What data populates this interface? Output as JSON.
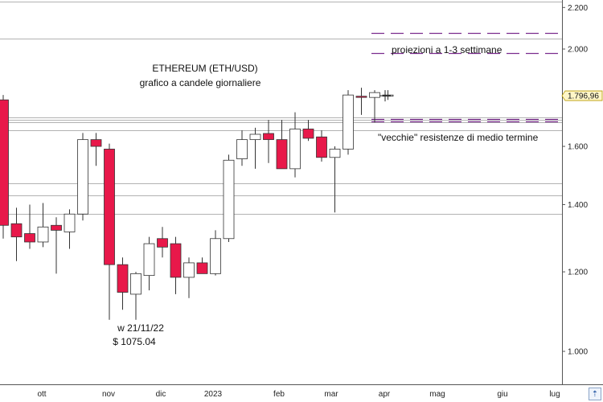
{
  "chart_data": {
    "type": "candlestick",
    "title": "ETHEREUM (ETH/USD)",
    "subtitle": "grafico a candele giornaliere",
    "ylim": [
      900,
      2300
    ],
    "y_scale": "log",
    "y_ticks": [
      "1.000",
      "1.200",
      "1.400",
      "1.600",
      "2.000",
      "2.200"
    ],
    "y_tick_values": [
      1000,
      1200,
      1400,
      1600,
      2000,
      2200
    ],
    "x_ticks": [
      "ott",
      "nov",
      "dic",
      "2023",
      "feb",
      "mar",
      "apr",
      "mag",
      "giu",
      "lug"
    ],
    "current_price": {
      "label": "1.796,96",
      "value": 1796.96
    },
    "candles": [
      {
        "o": 1780,
        "h": 1800,
        "l": 1295,
        "c": 1335
      },
      {
        "o": 1340,
        "h": 1390,
        "l": 1230,
        "c": 1300
      },
      {
        "o": 1310,
        "h": 1400,
        "l": 1265,
        "c": 1285
      },
      {
        "o": 1285,
        "h": 1405,
        "l": 1270,
        "c": 1330
      },
      {
        "o": 1335,
        "h": 1360,
        "l": 1195,
        "c": 1320
      },
      {
        "o": 1315,
        "h": 1385,
        "l": 1265,
        "c": 1370
      },
      {
        "o": 1370,
        "h": 1650,
        "l": 1350,
        "c": 1625
      },
      {
        "o": 1625,
        "h": 1650,
        "l": 1530,
        "c": 1600
      },
      {
        "o": 1590,
        "h": 1610,
        "l": 1075.04,
        "c": 1220
      },
      {
        "o": 1220,
        "h": 1240,
        "l": 1100,
        "c": 1145
      },
      {
        "o": 1140,
        "h": 1200,
        "l": 1075,
        "c": 1195
      },
      {
        "o": 1190,
        "h": 1300,
        "l": 1150,
        "c": 1280
      },
      {
        "o": 1295,
        "h": 1330,
        "l": 1240,
        "c": 1270
      },
      {
        "o": 1280,
        "h": 1300,
        "l": 1140,
        "c": 1185
      },
      {
        "o": 1185,
        "h": 1240,
        "l": 1130,
        "c": 1225
      },
      {
        "o": 1225,
        "h": 1240,
        "l": 1195,
        "c": 1195
      },
      {
        "o": 1195,
        "h": 1320,
        "l": 1190,
        "c": 1295
      },
      {
        "o": 1295,
        "h": 1570,
        "l": 1285,
        "c": 1550
      },
      {
        "o": 1555,
        "h": 1660,
        "l": 1530,
        "c": 1625
      },
      {
        "o": 1625,
        "h": 1670,
        "l": 1520,
        "c": 1645
      },
      {
        "o": 1648,
        "h": 1700,
        "l": 1540,
        "c": 1625
      },
      {
        "o": 1625,
        "h": 1700,
        "l": 1520,
        "c": 1520
      },
      {
        "o": 1520,
        "h": 1730,
        "l": 1490,
        "c": 1665
      },
      {
        "o": 1665,
        "h": 1700,
        "l": 1620,
        "c": 1630
      },
      {
        "o": 1635,
        "h": 1660,
        "l": 1545,
        "c": 1560
      },
      {
        "o": 1560,
        "h": 1600,
        "l": 1375,
        "c": 1590
      },
      {
        "o": 1590,
        "h": 1820,
        "l": 1570,
        "c": 1800
      },
      {
        "o": 1795,
        "h": 1830,
        "l": 1720,
        "c": 1790
      },
      {
        "o": 1790,
        "h": 1820,
        "l": 1690,
        "c": 1810
      },
      {
        "o": 1800,
        "h": 1820,
        "l": 1780,
        "c": 1800
      }
    ],
    "resistance_lines": [
      1470,
      1430,
      1370,
      2050,
      2230
    ],
    "resistance_band": [
      1690,
      1700,
      1710,
      1660
    ],
    "projection_lines": [
      1983,
      2075
    ],
    "old_resistance_lines": [
      1695,
      1705
    ]
  },
  "annotations": {
    "low_date": "w 21/11/22",
    "low_price": "$ 1075.04",
    "projections": "proiezioni a 1-3 settimane",
    "old_resistances": "\"vecchie\" resistenze di medio termine"
  },
  "colors": {
    "bear": "#e8184a",
    "bull": "#ffffff",
    "projection": "#7b2d8e",
    "grid": "#999999"
  }
}
